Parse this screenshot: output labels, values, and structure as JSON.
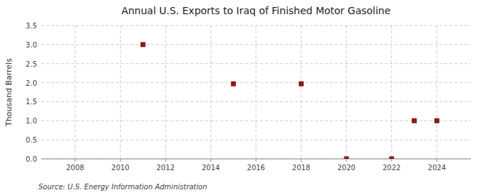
{
  "chart_data": {
    "type": "scatter",
    "title": "Annual U.S. Exports to Iraq of Finished Motor Gasoline",
    "y_label": "Thousand Barrels",
    "annotation": "Source: U.S. Energy Information Administration",
    "x": [
      2011,
      2015,
      2018,
      2020,
      2022,
      2023,
      2024
    ],
    "values": [
      3.0,
      1.97,
      1.97,
      0.0,
      0.0,
      1.0,
      1.0
    ],
    "color": "#8b1a1a",
    "marker": "square",
    "xlim": [
      2006.5,
      2025.5
    ],
    "ylim": [
      0.0,
      3.5
    ],
    "xticks": [
      2008,
      2010,
      2012,
      2014,
      2016,
      2018,
      2020,
      2022,
      2024
    ],
    "yticks": [
      {
        "value": 0.0,
        "label": "0.0"
      },
      0.5,
      {
        "value": 1.0,
        "label": "1.0"
      },
      1.5,
      {
        "value": 2.0,
        "label": "2.0"
      },
      2.5,
      {
        "value": 3.0,
        "label": "3.0"
      },
      3.5
    ],
    "grid": true
  }
}
